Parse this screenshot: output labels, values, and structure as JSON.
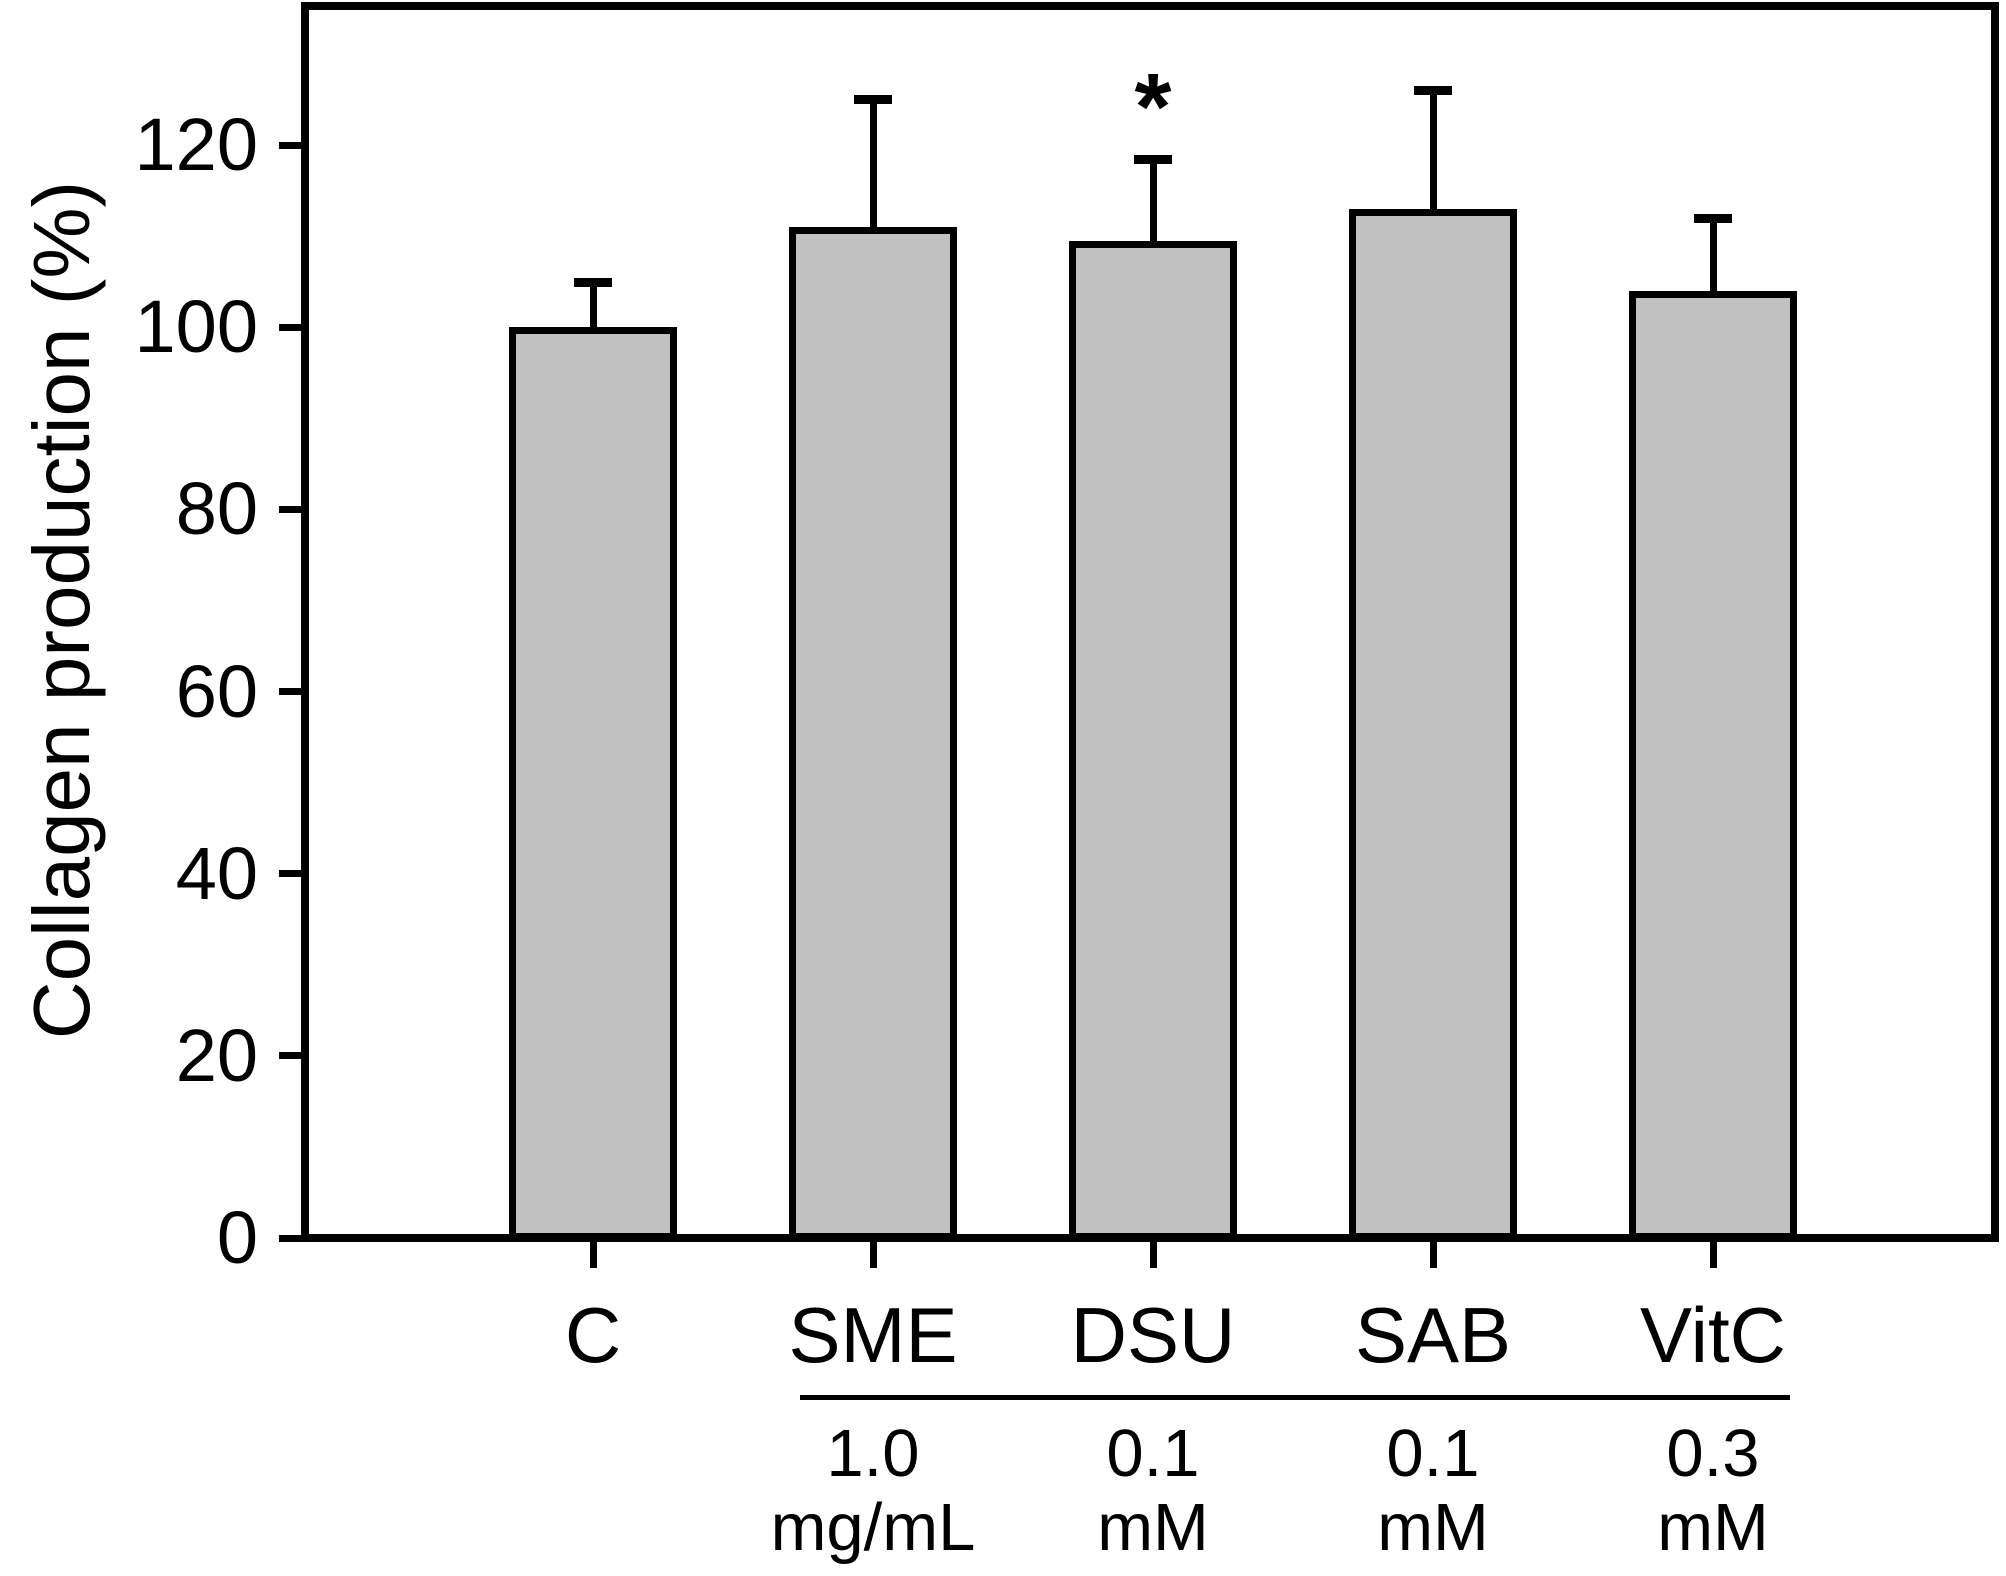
{
  "figure": {
    "background_color": "#ffffff",
    "bar_fill_color": "#c1c1c1",
    "line_color": "#000000"
  },
  "chart_data": {
    "type": "bar",
    "title": "",
    "xlabel": "",
    "ylabel": "Collagen production (%)",
    "ylim": [
      0,
      135
    ],
    "yticks": [
      0,
      20,
      40,
      60,
      80,
      100,
      120
    ],
    "grid": false,
    "legend": false,
    "categories": [
      "C",
      "SME",
      "DSU",
      "SAB",
      "VitC"
    ],
    "series": [
      {
        "name": "Collagen production",
        "values": [
          100,
          111,
          109.5,
          113,
          104
        ],
        "errors_plus": [
          5,
          14,
          9,
          13,
          8
        ]
      }
    ],
    "significance_markers": [
      "",
      "",
      "*",
      "",
      ""
    ],
    "concentration_labels": [
      {
        "value": "",
        "unit": ""
      },
      {
        "value": "1.0",
        "unit": "mg/mL"
      },
      {
        "value": "0.1",
        "unit": "mM"
      },
      {
        "value": "0.1",
        "unit": "mM"
      },
      {
        "value": "0.3",
        "unit": "mM"
      }
    ],
    "treatment_group_underline": true
  }
}
